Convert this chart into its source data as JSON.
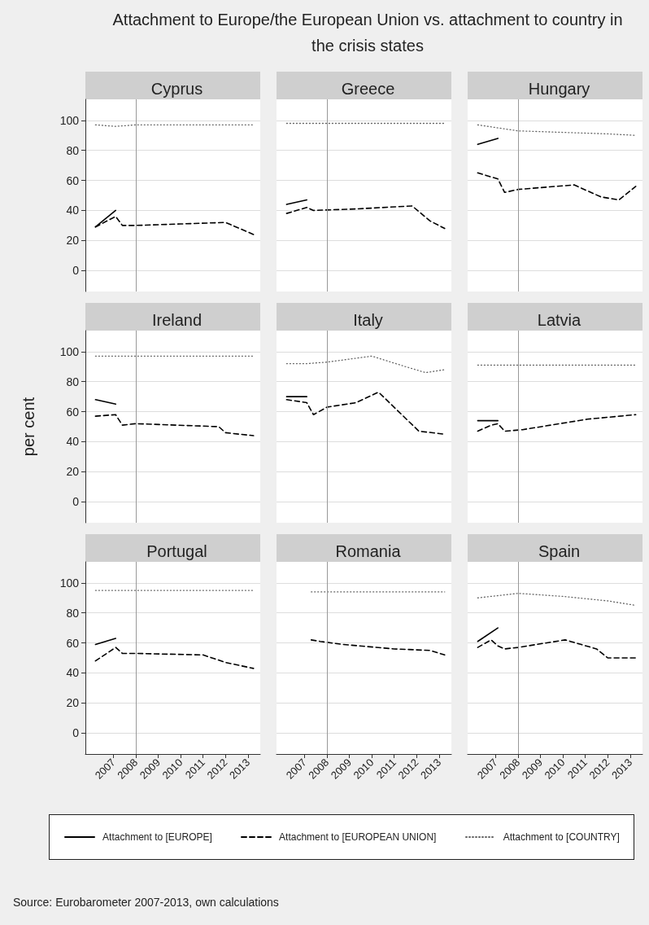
{
  "chart_data": [
    {
      "type": "line",
      "title": "Cyprus",
      "annotations": [
        "Attachment to Europe/the European Union vs. attachment to country in the crisis states",
        "Source: Eurobarometer 2007-2013, own calculations"
      ],
      "legend": "bottom",
      "tick_labels": "y",
      "xlim": [
        2005.75,
        2013.55
      ],
      "xticks": [
        2007,
        2008,
        2009,
        2010,
        2011,
        2012,
        2013
      ],
      "ylim": [
        -14,
        114
      ],
      "yticks": [
        0,
        20,
        40,
        60,
        80,
        100
      ],
      "grid": "y",
      "marker": "none",
      "ref_lines": [
        {
          "axis": "x",
          "value": 2008,
          "color": "#999999"
        }
      ],
      "series": [
        {
          "name": "Attachment to [EUROPE]",
          "color": "#000000",
          "line_style": "solid",
          "x": [
            2006.2,
            2007.1
          ],
          "values": [
            29,
            40
          ]
        },
        {
          "name": "Attachment to [EUROPEAN UNION]",
          "color": "#000000",
          "line_style": "dashed",
          "x": [
            2006.2,
            2007.1,
            2007.4,
            2008,
            2010,
            2012,
            2013.25
          ],
          "values": [
            29,
            36,
            30,
            30,
            31,
            32,
            24
          ]
        },
        {
          "name": "Attachment to [COUNTRY]",
          "color": "#666666",
          "line_style": "dotted",
          "x": [
            2006.2,
            2007.1,
            2008,
            2010,
            2012,
            2013.25
          ],
          "values": [
            97,
            96,
            97,
            97,
            97,
            97
          ]
        }
      ]
    },
    {
      "type": "line",
      "title": "Greece",
      "tick_labels": false,
      "xlim": [
        2005.75,
        2013.55
      ],
      "xticks": [
        2007,
        2008,
        2009,
        2010,
        2011,
        2012,
        2013
      ],
      "ylim": [
        -14,
        114
      ],
      "yticks": [
        0,
        20,
        40,
        60,
        80,
        100
      ],
      "grid": "y",
      "marker": "none",
      "ref_lines": [
        {
          "axis": "x",
          "value": 2008,
          "color": "#999999"
        }
      ],
      "series": [
        {
          "color": "#000000",
          "line_style": "solid",
          "x": [
            2006.2,
            2007.1
          ],
          "values": [
            44,
            47
          ]
        },
        {
          "color": "#000000",
          "line_style": "dashed",
          "x": [
            2006.2,
            2007.1,
            2007.4,
            2009.3,
            2011.8,
            2012.6,
            2013.25
          ],
          "values": [
            38,
            42,
            40,
            41,
            43,
            33,
            28
          ]
        },
        {
          "color": "#666666",
          "line_style": "dotted",
          "x": [
            2006.2,
            2007.1,
            2008,
            2010,
            2012,
            2013.25
          ],
          "values": [
            98,
            98,
            98,
            98,
            98,
            98
          ]
        }
      ]
    },
    {
      "type": "line",
      "title": "Hungary",
      "tick_labels": false,
      "xlim": [
        2005.75,
        2013.55
      ],
      "xticks": [
        2007,
        2008,
        2009,
        2010,
        2011,
        2012,
        2013
      ],
      "ylim": [
        -14,
        114
      ],
      "yticks": [
        0,
        20,
        40,
        60,
        80,
        100
      ],
      "grid": "y",
      "marker": "none",
      "ref_lines": [
        {
          "axis": "x",
          "value": 2008,
          "color": "#999999"
        }
      ],
      "series": [
        {
          "color": "#000000",
          "line_style": "solid",
          "x": [
            2006.2,
            2007.1
          ],
          "values": [
            84,
            88
          ]
        },
        {
          "color": "#000000",
          "line_style": "dashed",
          "x": [
            2006.2,
            2007.1,
            2007.4,
            2008,
            2010.5,
            2011.7,
            2012.5,
            2013.25
          ],
          "values": [
            65,
            61,
            52,
            54,
            57,
            49,
            47,
            56
          ]
        },
        {
          "color": "#666666",
          "line_style": "dotted",
          "x": [
            2006.2,
            2007.1,
            2008,
            2010,
            2012,
            2013.25
          ],
          "values": [
            97,
            95,
            93,
            92,
            91,
            90
          ]
        }
      ]
    },
    {
      "type": "line",
      "title": "Ireland",
      "ylabel": "per cent",
      "tick_labels": "y",
      "xlim": [
        2005.75,
        2013.55
      ],
      "xticks": [
        2007,
        2008,
        2009,
        2010,
        2011,
        2012,
        2013
      ],
      "ylim": [
        -14,
        114
      ],
      "yticks": [
        0,
        20,
        40,
        60,
        80,
        100
      ],
      "grid": "y",
      "marker": "none",
      "ref_lines": [
        {
          "axis": "x",
          "value": 2008,
          "color": "#999999"
        }
      ],
      "series": [
        {
          "color": "#000000",
          "line_style": "solid",
          "x": [
            2006.2,
            2007.1
          ],
          "values": [
            68,
            65
          ]
        },
        {
          "color": "#000000",
          "line_style": "dashed",
          "x": [
            2006.2,
            2007.1,
            2007.4,
            2008,
            2011.7,
            2012,
            2013.25
          ],
          "values": [
            57,
            58,
            51,
            52,
            50,
            46,
            44
          ]
        },
        {
          "color": "#666666",
          "line_style": "dotted",
          "x": [
            2006.2,
            2007.1,
            2008,
            2010,
            2012,
            2013.25
          ],
          "values": [
            97,
            97,
            97,
            97,
            97,
            97
          ]
        }
      ]
    },
    {
      "type": "line",
      "title": "Italy",
      "tick_labels": false,
      "xlim": [
        2005.75,
        2013.55
      ],
      "xticks": [
        2007,
        2008,
        2009,
        2010,
        2011,
        2012,
        2013
      ],
      "ylim": [
        -14,
        114
      ],
      "yticks": [
        0,
        20,
        40,
        60,
        80,
        100
      ],
      "grid": "y",
      "marker": "none",
      "ref_lines": [
        {
          "axis": "x",
          "value": 2008,
          "color": "#999999"
        }
      ],
      "series": [
        {
          "color": "#000000",
          "line_style": "solid",
          "x": [
            2006.2,
            2007.1
          ],
          "values": [
            70,
            70
          ]
        },
        {
          "color": "#000000",
          "line_style": "dashed",
          "x": [
            2006.2,
            2007.1,
            2007.4,
            2008,
            2009.3,
            2010.3,
            2011.2,
            2012.1,
            2013.25
          ],
          "values": [
            68,
            66,
            58,
            63,
            66,
            73,
            60,
            47,
            45
          ]
        },
        {
          "color": "#666666",
          "line_style": "dotted",
          "x": [
            2006.2,
            2007.1,
            2008,
            2010,
            2011.5,
            2012.4,
            2013.25
          ],
          "values": [
            92,
            92,
            93,
            97,
            90,
            86,
            88
          ]
        }
      ]
    },
    {
      "type": "line",
      "title": "Latvia",
      "tick_labels": false,
      "xlim": [
        2005.75,
        2013.55
      ],
      "xticks": [
        2007,
        2008,
        2009,
        2010,
        2011,
        2012,
        2013
      ],
      "ylim": [
        -14,
        114
      ],
      "yticks": [
        0,
        20,
        40,
        60,
        80,
        100
      ],
      "grid": "y",
      "marker": "none",
      "ref_lines": [
        {
          "axis": "x",
          "value": 2008,
          "color": "#999999"
        }
      ],
      "series": [
        {
          "color": "#000000",
          "line_style": "solid",
          "x": [
            2006.2,
            2007.1
          ],
          "values": [
            54,
            54
          ]
        },
        {
          "color": "#000000",
          "line_style": "dashed",
          "x": [
            2006.2,
            2006.8,
            2007.1,
            2007.4,
            2008.2,
            2011.1,
            2013.25
          ],
          "values": [
            47,
            51,
            52,
            47,
            48,
            55,
            58
          ]
        },
        {
          "color": "#666666",
          "line_style": "dotted",
          "x": [
            2006.2,
            2007.1,
            2008,
            2010,
            2012,
            2013.25
          ],
          "values": [
            91,
            91,
            91,
            91,
            91,
            91
          ]
        }
      ]
    },
    {
      "type": "line",
      "title": "Portugal",
      "xlim": [
        2005.75,
        2013.55
      ],
      "xticks": [
        2007,
        2008,
        2009,
        2010,
        2011,
        2012,
        2013
      ],
      "ylim": [
        -14,
        114
      ],
      "yticks": [
        0,
        20,
        40,
        60,
        80,
        100
      ],
      "grid": "y",
      "marker": "none",
      "ref_lines": [
        {
          "axis": "x",
          "value": 2008,
          "color": "#999999"
        }
      ],
      "series": [
        {
          "color": "#000000",
          "line_style": "solid",
          "x": [
            2006.2,
            2007.1
          ],
          "values": [
            59,
            63
          ]
        },
        {
          "color": "#000000",
          "line_style": "dashed",
          "x": [
            2006.2,
            2007.1,
            2007.4,
            2008,
            2011,
            2012,
            2013.25
          ],
          "values": [
            48,
            57,
            53,
            53,
            52,
            47,
            43
          ]
        },
        {
          "color": "#666666",
          "line_style": "dotted",
          "x": [
            2006.2,
            2007.1,
            2008,
            2010,
            2012,
            2013.25
          ],
          "values": [
            95,
            95,
            95,
            95,
            95,
            95
          ]
        }
      ]
    },
    {
      "type": "line",
      "title": "Romania",
      "tick_labels": "x",
      "xlim": [
        2005.75,
        2013.55
      ],
      "xticks": [
        2007,
        2008,
        2009,
        2010,
        2011,
        2012,
        2013
      ],
      "ylim": [
        -14,
        114
      ],
      "yticks": [
        0,
        20,
        40,
        60,
        80,
        100
      ],
      "grid": "y",
      "marker": "none",
      "ref_lines": [
        {
          "axis": "x",
          "value": 2008,
          "color": "#999999"
        }
      ],
      "series": [
        {
          "color": "#000000",
          "line_style": "dashed",
          "x": [
            2007.3,
            2007.7,
            2008.7,
            2011,
            2012.6,
            2013.25
          ],
          "values": [
            62,
            61,
            59,
            56,
            55,
            52
          ]
        },
        {
          "color": "#666666",
          "line_style": "dotted",
          "x": [
            2007.3,
            2008,
            2010,
            2012,
            2013.25
          ],
          "values": [
            94,
            94,
            94,
            94,
            94
          ]
        }
      ]
    },
    {
      "type": "line",
      "title": "Spain",
      "tick_labels": "x",
      "xlim": [
        2005.75,
        2013.55
      ],
      "xticks": [
        2007,
        2008,
        2009,
        2010,
        2011,
        2012,
        2013
      ],
      "ylim": [
        -14,
        114
      ],
      "yticks": [
        0,
        20,
        40,
        60,
        80,
        100
      ],
      "grid": "y",
      "marker": "none",
      "ref_lines": [
        {
          "axis": "x",
          "value": 2008,
          "color": "#999999"
        }
      ],
      "series": [
        {
          "color": "#000000",
          "line_style": "solid",
          "x": [
            2006.2,
            2007.1
          ],
          "values": [
            61,
            70
          ]
        },
        {
          "color": "#000000",
          "line_style": "dashed",
          "x": [
            2006.2,
            2006.8,
            2007.1,
            2007.4,
            2008,
            2010.1,
            2011.5,
            2012,
            2013.25
          ],
          "values": [
            57,
            62,
            58,
            56,
            57,
            62,
            56,
            50,
            50
          ]
        },
        {
          "color": "#666666",
          "line_style": "dotted",
          "x": [
            2006.2,
            2008,
            2010,
            2012,
            2013.25
          ],
          "values": [
            90,
            93,
            91,
            88,
            85
          ]
        }
      ]
    }
  ]
}
